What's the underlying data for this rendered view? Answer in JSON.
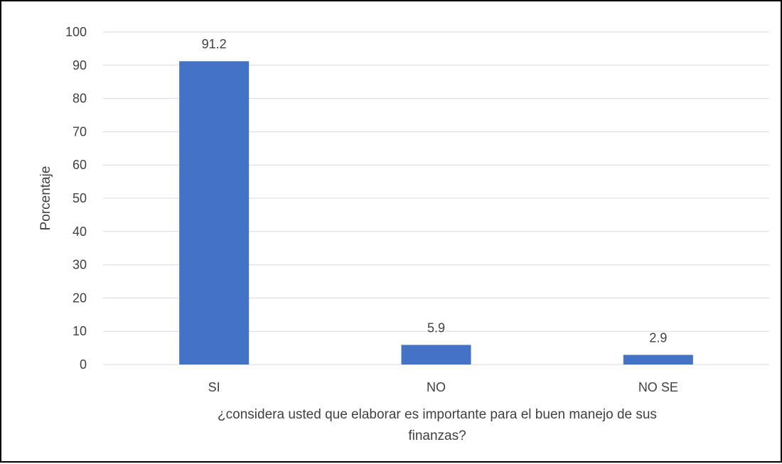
{
  "chart_data": {
    "type": "bar",
    "categories": [
      "SI",
      "NO",
      "NO SE"
    ],
    "values": [
      91.2,
      5.9,
      2.9
    ],
    "data_labels": [
      "91.2",
      "5.9",
      "2.9"
    ],
    "title": "",
    "xlabel_lines": [
      "¿considera usted que elaborar es importante para el buen manejo de sus",
      "finanzas?"
    ],
    "ylabel": "Porcentaje",
    "ylim": [
      0,
      100
    ],
    "y_ticks": [
      "0",
      "10",
      "20",
      "30",
      "40",
      "50",
      "60",
      "70",
      "80",
      "90",
      "100"
    ],
    "grid": true,
    "legend": "none",
    "bar_color": "#4472c4"
  }
}
